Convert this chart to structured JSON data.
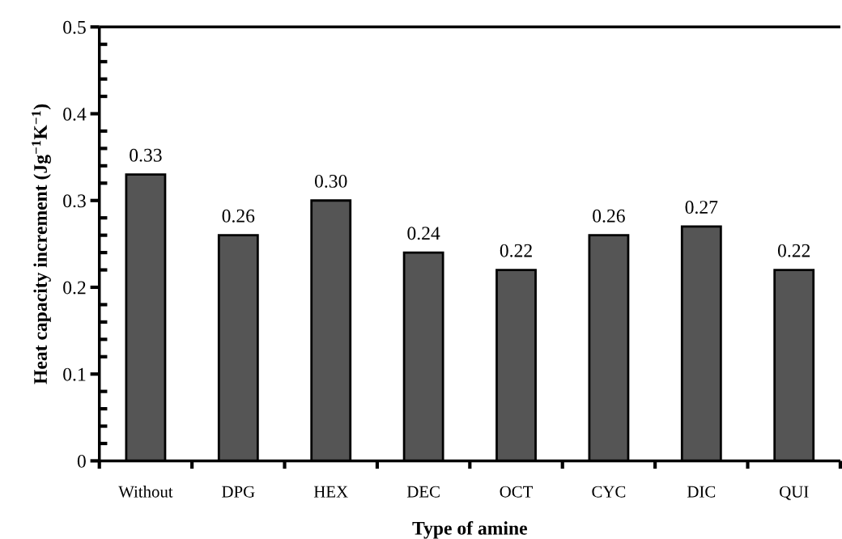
{
  "chart_data": {
    "type": "bar",
    "xlabel": "Type of amine",
    "ylabel": "Heat capacity increment (Jg$^{−1}$K$^{−1}$)",
    "categories": [
      "Without",
      "DPG",
      "HEX",
      "DEC",
      "OCT",
      "CYC",
      "DIC",
      "QUI"
    ],
    "values": [
      0.33,
      0.26,
      0.3,
      0.24,
      0.22,
      0.26,
      0.27,
      0.22
    ],
    "color": "#555555",
    "value_labels": [
      "0.33",
      "0.26",
      "0.30",
      "0.24",
      "0.22",
      "0.26",
      "0.27",
      "0.22"
    ],
    "ylim": [
      0,
      0.5
    ],
    "yticks": [
      {
        "value": 0,
        "label": "0"
      },
      0.1,
      0.2,
      0.3,
      0.4,
      0.5
    ]
  }
}
